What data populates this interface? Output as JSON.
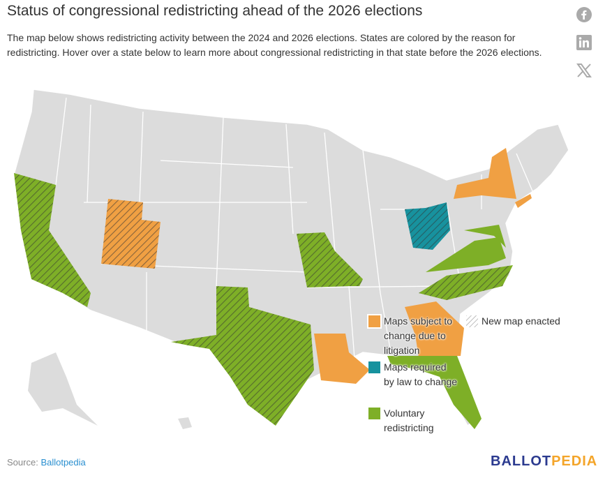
{
  "title": "Status of congressional redistricting ahead of the 2026 elections",
  "description": "The map below shows redistricting activity between the 2024 and 2026 elections. States are colored by the reason for redistricting. Hover over a state below to learn more about congressional redistricting in that state before the 2026 elections.",
  "social": [
    "facebook-icon",
    "linkedin-icon",
    "x-icon"
  ],
  "legend": {
    "litigation": "Maps subject to change due to litigation",
    "required": "Maps required by law to change",
    "voluntary": "Voluntary redistricting",
    "new_map": "New map enacted"
  },
  "colors": {
    "litigation": "#f0a043",
    "required": "#17929e",
    "voluntary": "#7eaf27",
    "base": "#dcdcdc"
  },
  "states": {
    "litigation": [
      "Utah",
      "New York",
      "Louisiana",
      "Georgia",
      "New Jersey"
    ],
    "required": [
      "Ohio"
    ],
    "voluntary": [
      "California",
      "Texas",
      "Missouri",
      "North Carolina",
      "Virginia",
      "Maryland",
      "Florida"
    ],
    "new_map": [
      "California",
      "Utah",
      "Texas",
      "Missouri",
      "North Carolina",
      "Ohio"
    ]
  },
  "footer": {
    "source_label": "Source:",
    "source_link": "Ballotpedia",
    "logo_a": "BALLOT",
    "logo_b": "PEDIA"
  }
}
